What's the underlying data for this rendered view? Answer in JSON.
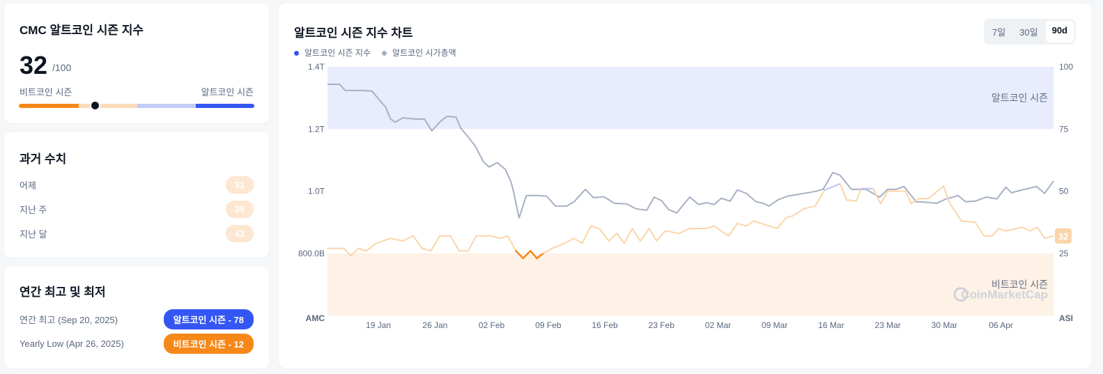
{
  "index_card": {
    "title": "CMC 알트코인 시즌 지수",
    "value": "32",
    "max": "/100",
    "left_label": "비트코인 시즌",
    "right_label": "알트코인 시즌",
    "value_num": 32
  },
  "history": {
    "title": "과거 수치",
    "rows": [
      {
        "label": "어제",
        "value": "31"
      },
      {
        "label": "지난 주",
        "value": "35"
      },
      {
        "label": "지난 달",
        "value": "43"
      }
    ]
  },
  "yearly": {
    "title": "연간 최고 및 최저",
    "high_label": "연간 최고 (Sep 20, 2025)",
    "high_badge": "알트코인 시즌 - 78",
    "low_label": "Yearly Low (Apr 26, 2025)",
    "low_badge": "비트코인 시즌 - 12"
  },
  "colors": {
    "bitcoin": "#f68819",
    "altcoin": "#3456f3",
    "market_cap": "#a6b0c3"
  },
  "chart": {
    "title": "알트코인 시즌 지수 차트",
    "ranges": [
      "7일",
      "30일",
      "90d"
    ],
    "active_range": "90d",
    "legend": [
      "알트코인 시즌 지수",
      "알트코인 시가총액"
    ],
    "band_top": "알트코인 시즌",
    "band_bottom": "비트코인 시즌",
    "left_axis_name": "AMC",
    "right_axis_name": "ASI",
    "current_badge": "32",
    "watermark": "CoinMarketCap"
  },
  "chart_data": {
    "type": "line",
    "title": "알트코인 시즌 지수 차트",
    "left_ticks": [
      "800.0B",
      "1.0T",
      "1.2T",
      "1.4T"
    ],
    "left_tick_values": [
      0.8,
      1.0,
      1.2,
      1.4
    ],
    "right_ticks": [
      "25",
      "50",
      "75",
      "100"
    ],
    "right_tick_values": [
      25,
      50,
      75,
      100
    ],
    "x_ticks": [
      {
        "label": "19 Jan",
        "day": 6.3
      },
      {
        "label": "26 Jan",
        "day": 13.3
      },
      {
        "label": "02 Feb",
        "day": 20.3
      },
      {
        "label": "09 Feb",
        "day": 27.3
      },
      {
        "label": "16 Feb",
        "day": 34.3
      },
      {
        "label": "23 Feb",
        "day": 41.3
      },
      {
        "label": "02 Mar",
        "day": 48.3
      },
      {
        "label": "09 Mar",
        "day": 55.3
      },
      {
        "label": "16 Mar",
        "day": 62.3
      },
      {
        "label": "23 Mar",
        "day": 69.3
      },
      {
        "label": "30 Mar",
        "day": 76.3
      },
      {
        "label": "06 Apr",
        "day": 83.3
      }
    ],
    "xlim": [
      0,
      89.8
    ],
    "ylim_right": [
      0,
      100
    ],
    "ylim_left": [
      0.6,
      1.4
    ],
    "series": [
      {
        "name": "알트코인 시가총액",
        "axis": "left",
        "unit": "T",
        "points": [
          [
            0,
            1.344
          ],
          [
            1.5,
            1.344
          ],
          [
            2.2,
            1.324
          ],
          [
            4,
            1.324
          ],
          [
            5.5,
            1.322
          ],
          [
            6.3,
            1.297
          ],
          [
            7.2,
            1.27
          ],
          [
            7.8,
            1.232
          ],
          [
            8.4,
            1.222
          ],
          [
            9.3,
            1.236
          ],
          [
            11,
            1.232
          ],
          [
            12,
            1.232
          ],
          [
            12.9,
            1.194
          ],
          [
            14,
            1.225
          ],
          [
            14.8,
            1.241
          ],
          [
            15.9,
            1.238
          ],
          [
            16.5,
            1.202
          ],
          [
            17.3,
            1.178
          ],
          [
            18.3,
            1.144
          ],
          [
            19.3,
            1.094
          ],
          [
            20,
            1.078
          ],
          [
            21,
            1.092
          ],
          [
            22,
            1.07
          ],
          [
            22.7,
            1.03
          ],
          [
            23,
            1.0
          ],
          [
            23.7,
            0.914
          ],
          [
            24.6,
            0.986
          ],
          [
            26,
            0.986
          ],
          [
            27.1,
            0.984
          ],
          [
            28.2,
            0.952
          ],
          [
            29.6,
            0.952
          ],
          [
            30.5,
            0.966
          ],
          [
            31.9,
            1.006
          ],
          [
            32.9,
            0.979
          ],
          [
            34.2,
            0.982
          ],
          [
            35.5,
            0.961
          ],
          [
            37,
            0.959
          ],
          [
            38.2,
            0.943
          ],
          [
            39.5,
            0.939
          ],
          [
            40.4,
            0.981
          ],
          [
            41.3,
            0.97
          ],
          [
            42.2,
            0.941
          ],
          [
            43.2,
            0.93
          ],
          [
            44.8,
            0.981
          ],
          [
            45.9,
            0.957
          ],
          [
            46.9,
            0.963
          ],
          [
            47.8,
            0.957
          ],
          [
            48.7,
            0.977
          ],
          [
            49.8,
            0.968
          ],
          [
            50.7,
            1.004
          ],
          [
            51.8,
            0.993
          ],
          [
            53,
            0.966
          ],
          [
            53.9,
            0.961
          ],
          [
            54.6,
            0.952
          ],
          [
            55.7,
            0.972
          ],
          [
            56.9,
            0.984
          ],
          [
            60.3,
            0.999
          ],
          [
            61.3,
            1.006
          ],
          [
            62.5,
            1.06
          ],
          [
            63.4,
            1.051
          ],
          [
            64.8,
            1.006
          ],
          [
            66.6,
            1.006
          ],
          [
            68.3,
            0.981
          ],
          [
            69.3,
            1.006
          ],
          [
            70.3,
            1.006
          ],
          [
            71.3,
            1.015
          ],
          [
            72.8,
            0.966
          ],
          [
            74.3,
            0.964
          ],
          [
            75.3,
            0.961
          ],
          [
            76.5,
            0.975
          ],
          [
            78,
            0.986
          ],
          [
            78.9,
            0.966
          ],
          [
            80.1,
            0.968
          ],
          [
            81.5,
            0.981
          ],
          [
            82.8,
            0.975
          ],
          [
            83.9,
            1.013
          ],
          [
            84.6,
            0.995
          ],
          [
            86.2,
            1.006
          ],
          [
            87.7,
            1.015
          ],
          [
            88.7,
            0.993
          ],
          [
            89.8,
            1.033
          ]
        ]
      },
      {
        "name": "알트코인 시즌 지수",
        "axis": "right",
        "points": [
          [
            0,
            27
          ],
          [
            2,
            27
          ],
          [
            2.9,
            24
          ],
          [
            3.8,
            27
          ],
          [
            4.8,
            26
          ],
          [
            6,
            29
          ],
          [
            7.8,
            31
          ],
          [
            9.3,
            30
          ],
          [
            10.6,
            32
          ],
          [
            11.7,
            27
          ],
          [
            12.8,
            26
          ],
          [
            13.9,
            32
          ],
          [
            15.2,
            32
          ],
          [
            16.3,
            26
          ],
          [
            17.4,
            26
          ],
          [
            18.4,
            32
          ],
          [
            20.3,
            32
          ],
          [
            21.3,
            31
          ],
          [
            22.3,
            32
          ],
          [
            23.3,
            26
          ],
          [
            24.2,
            23
          ],
          [
            25.1,
            26
          ],
          [
            25.9,
            23
          ],
          [
            26.7,
            25
          ],
          [
            27.8,
            27
          ],
          [
            29.3,
            29
          ],
          [
            30.5,
            31
          ],
          [
            31.5,
            29
          ],
          [
            32.6,
            36
          ],
          [
            33.6,
            35
          ],
          [
            34.8,
            30
          ],
          [
            35.8,
            33
          ],
          [
            36.7,
            29
          ],
          [
            37.7,
            35
          ],
          [
            38.7,
            30
          ],
          [
            39.8,
            35
          ],
          [
            40.7,
            30
          ],
          [
            41.8,
            34
          ],
          [
            43.5,
            33
          ],
          [
            44.8,
            35
          ],
          [
            46.9,
            35
          ],
          [
            47.8,
            36
          ],
          [
            49.6,
            32
          ],
          [
            50.7,
            37
          ],
          [
            51.8,
            36
          ],
          [
            52.7,
            38
          ],
          [
            55.6,
            35
          ],
          [
            56.8,
            39.5
          ],
          [
            57.5,
            40
          ],
          [
            59,
            43
          ],
          [
            60.3,
            44
          ],
          [
            61.5,
            50.5
          ],
          [
            63.4,
            53
          ],
          [
            64.2,
            46.5
          ],
          [
            65.4,
            46
          ],
          [
            66,
            51
          ],
          [
            67.5,
            51
          ],
          [
            68.4,
            45
          ],
          [
            69.3,
            50
          ],
          [
            71.5,
            50
          ],
          [
            72.2,
            45
          ],
          [
            73.1,
            47
          ],
          [
            74.3,
            47
          ],
          [
            76.2,
            52
          ],
          [
            76.9,
            45.5
          ],
          [
            78.4,
            38
          ],
          [
            80.1,
            37.5
          ],
          [
            81.2,
            32
          ],
          [
            82.2,
            32
          ],
          [
            83,
            35
          ],
          [
            83.9,
            34
          ],
          [
            85.9,
            35.5
          ],
          [
            86.9,
            34
          ],
          [
            87.8,
            35.5
          ],
          [
            88.7,
            31
          ],
          [
            89.8,
            32
          ]
        ]
      }
    ]
  }
}
